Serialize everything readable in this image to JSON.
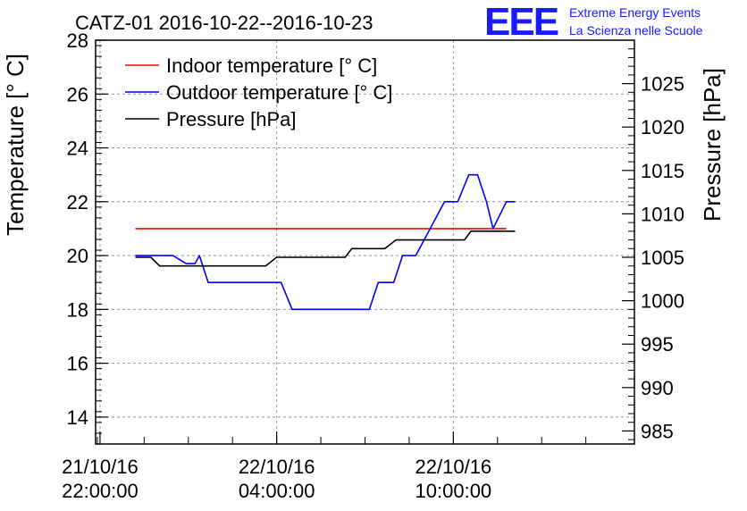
{
  "header": {
    "title": "CATZ-01 2016-10-22--2016-10-23",
    "logo_text": "EEE",
    "logo_line1": "Extreme Energy Events",
    "logo_line2": "La Scienza nelle Scuole"
  },
  "colors": {
    "indoor": "#ff0000",
    "outdoor": "#0000ff",
    "pressure": "#000000",
    "logo": "#1a1aff",
    "grid": "#999999"
  },
  "chart_data": {
    "type": "line",
    "title": "CATZ-01 2016-10-22--2016-10-23",
    "ylabel": "Temperature [° C]",
    "y2label": "Pressure [hPa]",
    "ylim": [
      13,
      28
    ],
    "y2lim": [
      983.5,
      1030
    ],
    "y_ticks": [
      14,
      16,
      18,
      20,
      22,
      24,
      26,
      28
    ],
    "y2_ticks": [
      985,
      990,
      995,
      1000,
      1005,
      1010,
      1015,
      1020,
      1025
    ],
    "xlim_hours": [
      -0.2,
      24.2
    ],
    "x_ticks": [
      {
        "hour": 0,
        "line1": "21/10/16",
        "line2": "22:00:00"
      },
      {
        "hour": 8,
        "line1": "22/10/16",
        "line2": "04:00:00"
      },
      {
        "hour": 16,
        "line1": "22/10/16",
        "line2": "10:00:00"
      }
    ],
    "grid": true,
    "legend_position": "top-left",
    "series": [
      {
        "name": "Indoor temperature [° C]",
        "axis": "left",
        "color": "#ff0000",
        "points": [
          [
            1.6,
            21
          ],
          [
            18.4,
            21
          ]
        ]
      },
      {
        "name": "Outdoor temperature [° C]",
        "axis": "left",
        "color": "#0000ff",
        "points": [
          [
            1.6,
            20
          ],
          [
            3.3,
            20
          ],
          [
            3.9,
            19.7
          ],
          [
            4.3,
            19.7
          ],
          [
            4.5,
            20
          ],
          [
            4.9,
            19
          ],
          [
            8.2,
            19
          ],
          [
            8.7,
            18
          ],
          [
            12.2,
            18
          ],
          [
            12.6,
            19
          ],
          [
            13.3,
            19
          ],
          [
            13.7,
            20
          ],
          [
            14.3,
            20
          ],
          [
            15.6,
            22
          ],
          [
            16.2,
            22
          ],
          [
            16.7,
            23
          ],
          [
            17.1,
            23
          ],
          [
            17.5,
            22
          ],
          [
            17.8,
            21
          ],
          [
            18.4,
            22
          ],
          [
            18.8,
            22
          ]
        ]
      },
      {
        "name": "Pressure [hPa]",
        "axis": "right",
        "color": "#000000",
        "points": [
          [
            1.6,
            1005
          ],
          [
            2.3,
            1005
          ],
          [
            2.7,
            1004
          ],
          [
            7.5,
            1004
          ],
          [
            8.0,
            1005
          ],
          [
            11.1,
            1005
          ],
          [
            11.4,
            1006
          ],
          [
            12.9,
            1006
          ],
          [
            13.4,
            1007
          ],
          [
            16.5,
            1007
          ],
          [
            16.8,
            1008
          ],
          [
            18.8,
            1008
          ]
        ]
      }
    ]
  }
}
